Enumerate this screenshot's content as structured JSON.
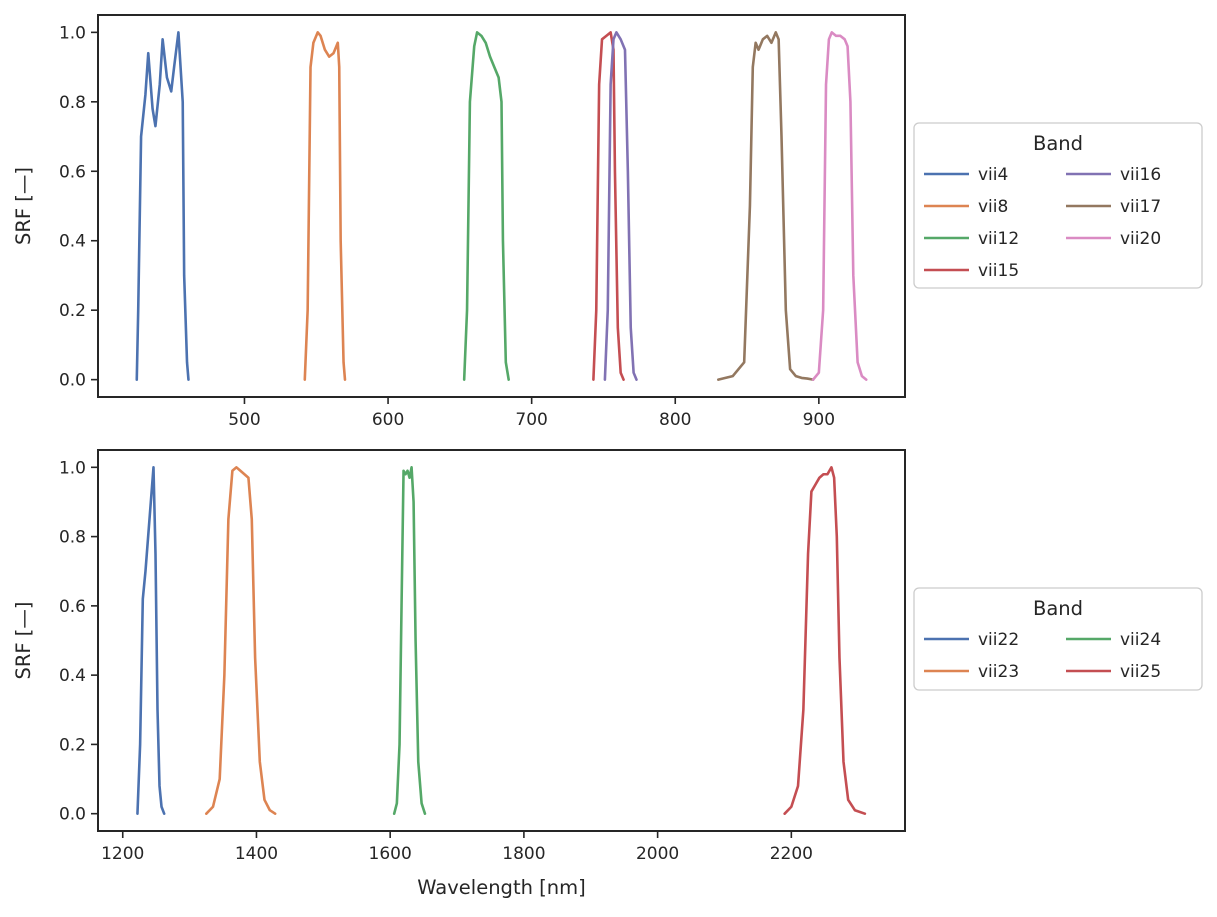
{
  "chart_data": [
    {
      "type": "line",
      "xlabel": "",
      "ylabel": "SRF [—]",
      "xlim": [
        398,
        960
      ],
      "ylim": [
        -0.05,
        1.05
      ],
      "xticks": [
        "500",
        "600",
        "700",
        "800",
        "900"
      ],
      "yticks": [
        "0.0",
        "0.2",
        "0.4",
        "0.6",
        "0.8",
        "1.0"
      ],
      "legend": {
        "title": "Band",
        "placement": "center-right outside",
        "columns": 2
      },
      "series": [
        {
          "name": "vii4",
          "color": "#4c72b0",
          "x": [
            425,
            426,
            428,
            431,
            433,
            436,
            438,
            441,
            443,
            446,
            449,
            451,
            454,
            457,
            458,
            460,
            461
          ],
          "y": [
            0.0,
            0.2,
            0.7,
            0.82,
            0.94,
            0.78,
            0.73,
            0.85,
            0.98,
            0.87,
            0.83,
            0.9,
            1.0,
            0.8,
            0.3,
            0.05,
            0.0
          ]
        },
        {
          "name": "vii8",
          "color": "#dd8452",
          "x": [
            542,
            544,
            546,
            548,
            551,
            553,
            556,
            559,
            562,
            565,
            566,
            567,
            569,
            570
          ],
          "y": [
            0.0,
            0.2,
            0.9,
            0.97,
            1.0,
            0.99,
            0.95,
            0.93,
            0.94,
            0.97,
            0.9,
            0.4,
            0.05,
            0.0
          ]
        },
        {
          "name": "vii12",
          "color": "#55a868",
          "x": [
            653,
            655,
            657,
            660,
            662,
            665,
            668,
            671,
            674,
            677,
            679,
            680,
            682,
            684
          ],
          "y": [
            0.0,
            0.2,
            0.8,
            0.96,
            1.0,
            0.99,
            0.97,
            0.93,
            0.9,
            0.87,
            0.8,
            0.4,
            0.05,
            0.0
          ]
        },
        {
          "name": "vii15",
          "color": "#c44e52",
          "x": [
            743,
            745,
            747,
            749,
            752,
            755,
            757,
            758,
            760,
            762,
            764
          ],
          "y": [
            0.0,
            0.2,
            0.85,
            0.98,
            0.99,
            1.0,
            0.95,
            0.6,
            0.15,
            0.02,
            0.0
          ]
        },
        {
          "name": "vii16",
          "color": "#8172b3",
          "x": [
            751,
            753,
            755,
            757,
            759,
            762,
            765,
            767,
            769,
            771,
            773
          ],
          "y": [
            0.0,
            0.2,
            0.85,
            0.98,
            1.0,
            0.98,
            0.95,
            0.6,
            0.15,
            0.02,
            0.0
          ]
        },
        {
          "name": "vii17",
          "color": "#937860",
          "x": [
            830,
            840,
            848,
            852,
            854,
            856,
            858,
            861,
            864,
            867,
            870,
            872,
            874,
            877,
            880,
            884,
            888,
            892,
            896
          ],
          "y": [
            0.0,
            0.01,
            0.05,
            0.5,
            0.9,
            0.97,
            0.95,
            0.98,
            0.99,
            0.97,
            1.0,
            0.98,
            0.7,
            0.2,
            0.03,
            0.01,
            0.005,
            0.003,
            0.0
          ]
        },
        {
          "name": "vii20",
          "color": "#da8bc3",
          "x": [
            896,
            900,
            903,
            905,
            907,
            909,
            912,
            915,
            918,
            920,
            922,
            924,
            927,
            930,
            933
          ],
          "y": [
            0.0,
            0.02,
            0.2,
            0.85,
            0.98,
            1.0,
            0.99,
            0.99,
            0.98,
            0.96,
            0.8,
            0.3,
            0.05,
            0.01,
            0.0
          ]
        }
      ]
    },
    {
      "type": "line",
      "xlabel": "Wavelength [nm]",
      "ylabel": "SRF [—]",
      "xlim": [
        1163,
        2370
      ],
      "ylim": [
        -0.05,
        1.05
      ],
      "xticks": [
        "1200",
        "1400",
        "1600",
        "1800",
        "2000",
        "2200"
      ],
      "yticks": [
        "0.0",
        "0.2",
        "0.4",
        "0.6",
        "0.8",
        "1.0"
      ],
      "legend": {
        "title": "Band",
        "placement": "center-right outside",
        "columns": 2
      },
      "series": [
        {
          "name": "vii22",
          "color": "#4c72b0",
          "x": [
            1222,
            1226,
            1230,
            1234,
            1238,
            1242,
            1246,
            1249,
            1252,
            1255,
            1258,
            1262
          ],
          "y": [
            0.0,
            0.2,
            0.62,
            0.7,
            0.8,
            0.9,
            1.0,
            0.75,
            0.3,
            0.08,
            0.02,
            0.0
          ]
        },
        {
          "name": "vii23",
          "color": "#dd8452",
          "x": [
            1325,
            1335,
            1345,
            1352,
            1358,
            1364,
            1370,
            1376,
            1382,
            1388,
            1393,
            1398,
            1405,
            1412,
            1420,
            1428
          ],
          "y": [
            0.0,
            0.02,
            0.1,
            0.4,
            0.85,
            0.99,
            1.0,
            0.99,
            0.98,
            0.97,
            0.85,
            0.45,
            0.15,
            0.04,
            0.01,
            0.0
          ]
        },
        {
          "name": "vii24",
          "color": "#55a868",
          "x": [
            1606,
            1610,
            1614,
            1617,
            1620,
            1623,
            1626,
            1629,
            1632,
            1635,
            1638,
            1642,
            1647,
            1652
          ],
          "y": [
            0.0,
            0.03,
            0.2,
            0.6,
            0.99,
            0.98,
            0.99,
            0.97,
            1.0,
            0.9,
            0.5,
            0.15,
            0.03,
            0.0
          ]
        },
        {
          "name": "vii25",
          "color": "#c44e52",
          "x": [
            2190,
            2200,
            2210,
            2218,
            2225,
            2230,
            2236,
            2242,
            2248,
            2254,
            2260,
            2264,
            2268,
            2272,
            2278,
            2285,
            2295,
            2310
          ],
          "y": [
            0.0,
            0.02,
            0.08,
            0.3,
            0.75,
            0.93,
            0.95,
            0.97,
            0.98,
            0.98,
            1.0,
            0.97,
            0.8,
            0.45,
            0.15,
            0.04,
            0.01,
            0.0
          ]
        }
      ]
    }
  ]
}
